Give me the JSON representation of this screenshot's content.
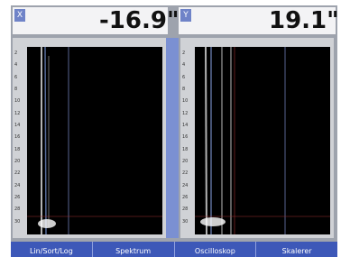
{
  "readouts": [
    {
      "axis": "X",
      "value": "-16.9\""
    },
    {
      "axis": "Y",
      "value": "19.1\""
    }
  ],
  "depth_ticks": [
    "2",
    "4",
    "6",
    "8",
    "10",
    "12",
    "14",
    "16",
    "18",
    "20",
    "22",
    "24",
    "26",
    "28",
    "30"
  ],
  "menu": [
    "Lin/Sort/Log",
    "Spektrum",
    "Oscilloskop",
    "Skalerer"
  ]
}
